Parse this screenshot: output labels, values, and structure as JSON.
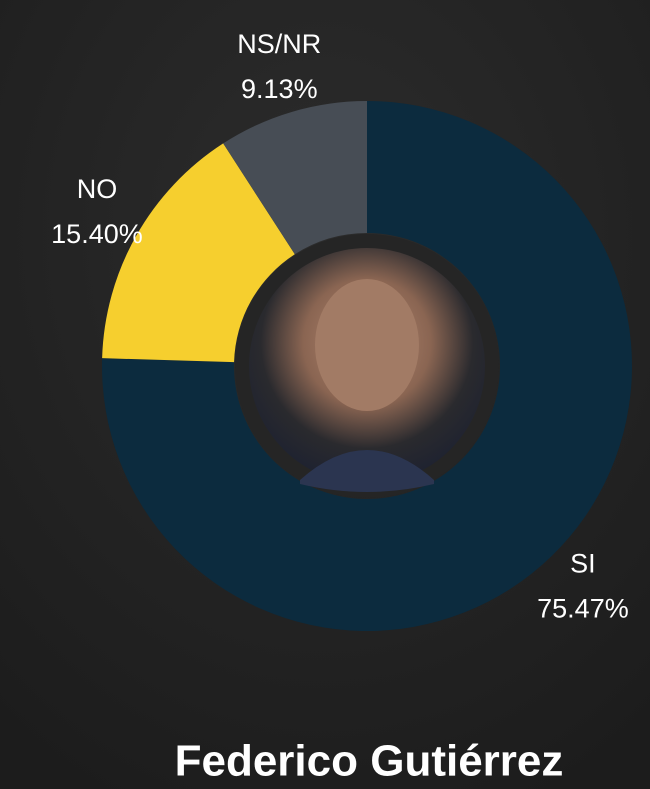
{
  "chart_data": {
    "type": "donut",
    "title": "Federico Gutiérrez",
    "categories": [
      "SI",
      "NO",
      "NS/NR"
    ],
    "values": [
      75.47,
      15.4,
      9.13
    ],
    "value_labels": [
      "75.47%",
      "15.40%",
      "9.13%"
    ],
    "colors": [
      "#0c2b3e",
      "#f6cf2e",
      "#474d55"
    ]
  }
}
